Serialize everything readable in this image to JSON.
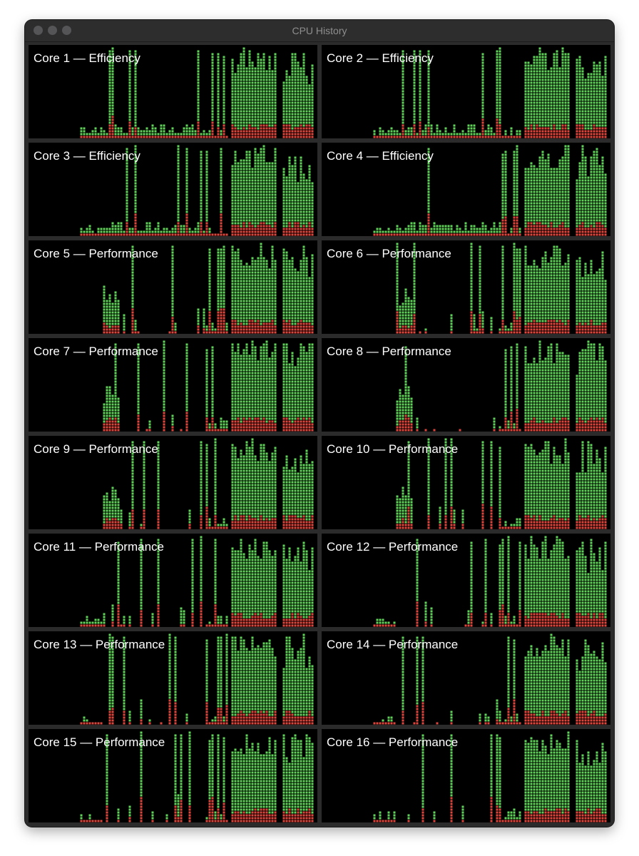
{
  "window": {
    "title": "CPU History"
  },
  "colors": {
    "user": "#5fd35a",
    "system": "#e0463c",
    "background": "#000000"
  },
  "cores": [
    {
      "label": "Core 1 — Efficiency",
      "kind": "efficiency"
    },
    {
      "label": "Core 2 — Efficiency",
      "kind": "efficiency"
    },
    {
      "label": "Core 3 — Efficiency",
      "kind": "efficiency"
    },
    {
      "label": "Core 4 — Efficiency",
      "kind": "efficiency"
    },
    {
      "label": "Core 5 — Performance",
      "kind": "performance"
    },
    {
      "label": "Core 6 — Performance",
      "kind": "performance"
    },
    {
      "label": "Core 7 — Performance",
      "kind": "performance"
    },
    {
      "label": "Core 8 — Performance",
      "kind": "performance"
    },
    {
      "label": "Core 9 — Performance",
      "kind": "performance"
    },
    {
      "label": "Core 10 — Performance",
      "kind": "performance"
    },
    {
      "label": "Core 11 — Performance",
      "kind": "performance"
    },
    {
      "label": "Core 12 — Performance",
      "kind": "performance"
    },
    {
      "label": "Core 13 — Performance",
      "kind": "performance"
    },
    {
      "label": "Core 14 — Performance",
      "kind": "performance"
    },
    {
      "label": "Core 15 — Performance",
      "kind": "performance"
    },
    {
      "label": "Core 16 — Performance",
      "kind": "performance"
    }
  ]
}
